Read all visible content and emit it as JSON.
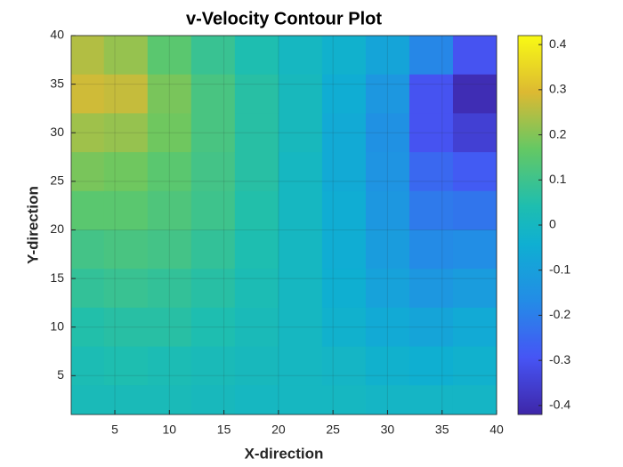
{
  "chart_data": {
    "type": "contour",
    "title": "v-Velocity Contour Plot",
    "x_label": "X-direction",
    "y_label": "Y-direction",
    "x": [
      2,
      6,
      10,
      14,
      18,
      22,
      26,
      30,
      34,
      38
    ],
    "y": [
      38,
      34,
      30,
      26,
      22,
      18,
      14,
      10,
      6,
      2
    ],
    "z": [
      [
        0.25,
        0.22,
        0.15,
        0.09,
        0.04,
        0.0,
        -0.03,
        -0.08,
        -0.18,
        -0.3
      ],
      [
        0.28,
        0.27,
        0.19,
        0.12,
        0.06,
        0.01,
        -0.05,
        -0.13,
        -0.3,
        -0.4
      ],
      [
        0.23,
        0.22,
        0.18,
        0.12,
        0.06,
        0.01,
        -0.06,
        -0.15,
        -0.3,
        -0.35
      ],
      [
        0.19,
        0.18,
        0.15,
        0.11,
        0.06,
        0.0,
        -0.06,
        -0.14,
        -0.25,
        -0.28
      ],
      [
        0.15,
        0.15,
        0.13,
        0.1,
        0.05,
        0.0,
        -0.05,
        -0.13,
        -0.21,
        -0.22
      ],
      [
        0.11,
        0.12,
        0.11,
        0.08,
        0.04,
        0.0,
        -0.05,
        -0.11,
        -0.17,
        -0.16
      ],
      [
        0.08,
        0.09,
        0.08,
        0.06,
        0.03,
        0.0,
        -0.04,
        -0.09,
        -0.13,
        -0.11
      ],
      [
        0.05,
        0.06,
        0.06,
        0.04,
        0.02,
        0.0,
        -0.03,
        -0.06,
        -0.08,
        -0.06
      ],
      [
        0.03,
        0.04,
        0.03,
        0.02,
        0.01,
        0.0,
        -0.01,
        -0.03,
        -0.04,
        -0.03
      ],
      [
        0.02,
        0.02,
        0.02,
        0.01,
        0.0,
        0.0,
        0.0,
        -0.01,
        -0.01,
        -0.01
      ]
    ],
    "xlim": [
      1,
      40
    ],
    "ylim": [
      1,
      40
    ],
    "xticks": [
      5,
      10,
      15,
      20,
      25,
      30,
      35,
      40
    ],
    "yticks": [
      5,
      10,
      15,
      20,
      25,
      30,
      35,
      40
    ],
    "clim": [
      -0.42,
      0.42
    ],
    "cticks": [
      -0.4,
      -0.3,
      -0.2,
      -0.1,
      0,
      0.1,
      0.2,
      0.3,
      0.4
    ],
    "colormap": "parula",
    "grid": true
  }
}
